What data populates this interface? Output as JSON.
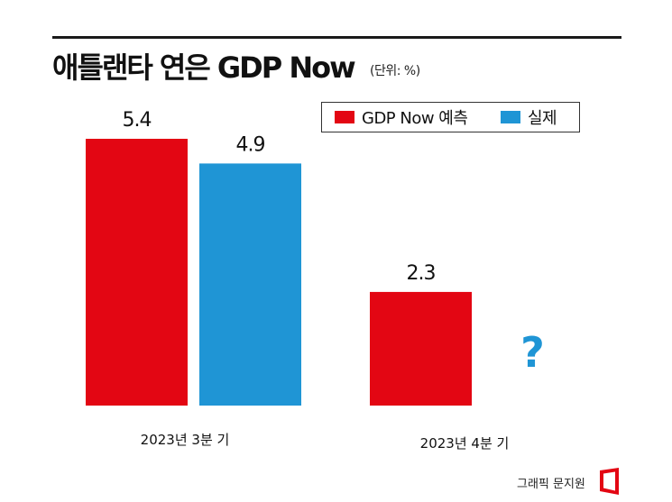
{
  "header": {
    "title": "애틀랜타 연은 GDP Now",
    "unit": "(단위: %)"
  },
  "legend": {
    "items": [
      {
        "label": "GDP Now 예측",
        "color": "#e30613"
      },
      {
        "label": "실제",
        "color": "#1f95d5"
      }
    ]
  },
  "chart_data": {
    "type": "bar",
    "categories": [
      "2023년  3분 기",
      "2023년  4분 기"
    ],
    "series": [
      {
        "name": "GDP Now 예측",
        "color": "#e30613",
        "values": [
          5.4,
          2.3
        ]
      },
      {
        "name": "실제",
        "color": "#1f95d5",
        "values": [
          4.9,
          null
        ]
      }
    ],
    "data_labels": [
      [
        "5.4",
        "2.3"
      ],
      [
        "4.9",
        "?"
      ]
    ],
    "missing_marker": "?",
    "ylim": [
      0,
      5.4
    ],
    "grid": false,
    "legend_position": "top-right"
  },
  "footer": {
    "source": "그래픽 문지원"
  }
}
